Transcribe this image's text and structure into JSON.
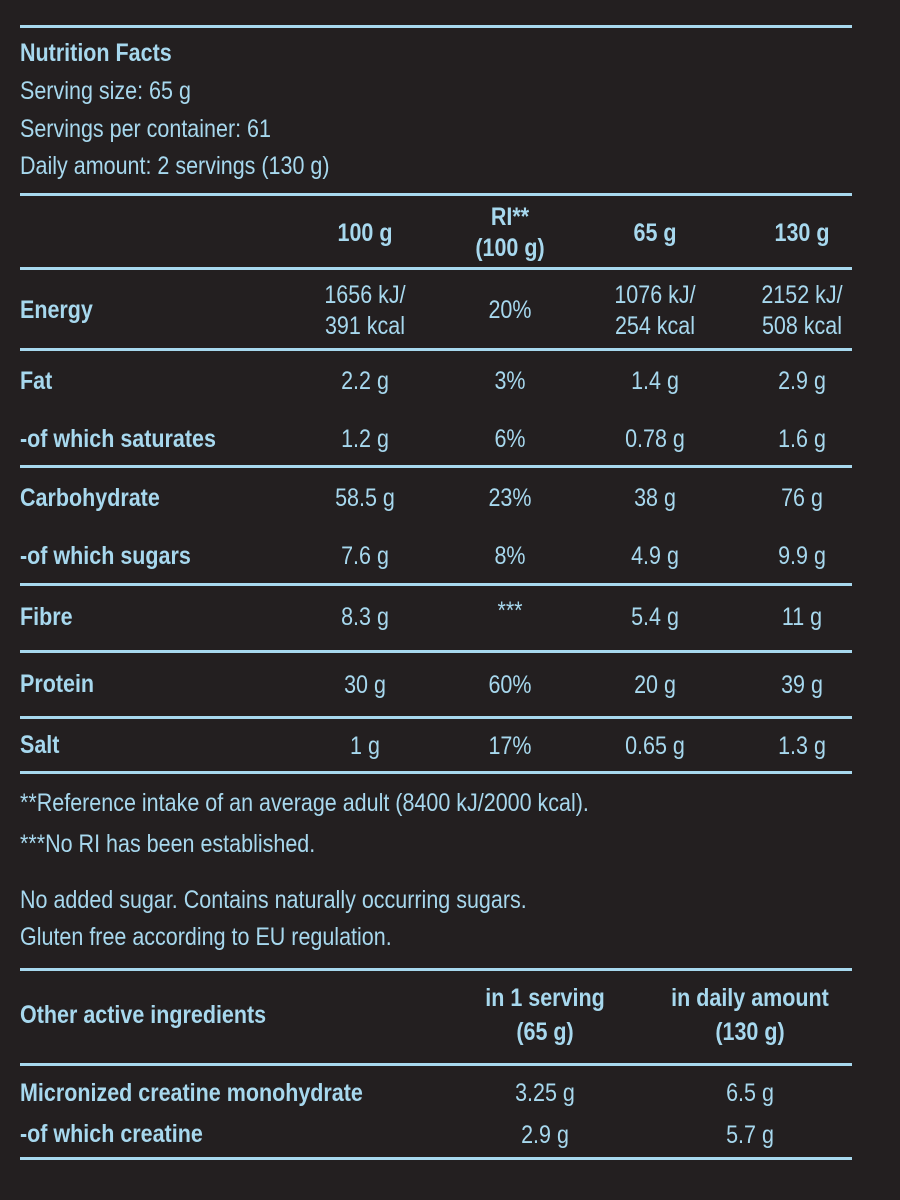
{
  "header": {
    "title": "Nutrition Facts",
    "serving_size": "Serving size: 65 g",
    "servings_per_container": "Servings per container: 61",
    "daily_amount": "Daily amount: 2 servings (130 g)"
  },
  "columns": {
    "c1": "100 g",
    "c2_line1": "RI**",
    "c2_line2": "(100 g)",
    "c3": "65 g",
    "c4": "130 g"
  },
  "energy": {
    "label": "Energy",
    "c1_line1": "1656 kJ/",
    "c1_line2": "391 kcal",
    "c2": "20%",
    "c3_line1": "1076 kJ/",
    "c3_line2": "254 kcal",
    "c4_line1": "2152 kJ/",
    "c4_line2": "508 kcal"
  },
  "rows": [
    {
      "label": "Fat",
      "c1": "2.2 g",
      "c2": "3%",
      "c3": "1.4 g",
      "c4": "2.9 g"
    },
    {
      "label": "-of which saturates",
      "c1": "1.2 g",
      "c2": "6%",
      "c3": "0.78 g",
      "c4": "1.6 g"
    },
    {
      "label": "Carbohydrate",
      "c1": "58.5 g",
      "c2": "23%",
      "c3": "38 g",
      "c4": "76 g"
    },
    {
      "label": "-of which sugars",
      "c1": "7.6 g",
      "c2": "8%",
      "c3": "4.9 g",
      "c4": "9.9 g"
    },
    {
      "label": "Fibre",
      "c1": "8.3 g",
      "c2": "***",
      "c3": "5.4 g",
      "c4": "11 g"
    },
    {
      "label": "Protein",
      "c1": "30 g",
      "c2": "60%",
      "c3": "20 g",
      "c4": "39 g"
    },
    {
      "label": "Salt",
      "c1": "1 g",
      "c2": "17%",
      "c3": "0.65 g",
      "c4": "1.3 g"
    }
  ],
  "footnotes": {
    "ri": "**Reference intake of an average adult (8400 kJ/2000 kcal).",
    "no_ri": "***No RI has been established."
  },
  "claims": {
    "line1": "No added sugar. Contains naturally occurring sugars.",
    "line2": "Gluten free according to EU regulation."
  },
  "other": {
    "title": "Other active ingredients",
    "col1_line1": "in 1 serving",
    "col1_line2": "(65 g)",
    "col2_line1": "in daily amount",
    "col2_line2": "(130 g)",
    "rows": [
      {
        "label": "Micronized creatine monohydrate",
        "c1": "3.25 g",
        "c2": "6.5 g"
      },
      {
        "label": "-of which creatine",
        "c1": "2.9 g",
        "c2": "5.7 g"
      }
    ]
  },
  "colors": {
    "background": "#231f20",
    "text": "#a7d8ee",
    "rule": "#a7d8ee"
  }
}
